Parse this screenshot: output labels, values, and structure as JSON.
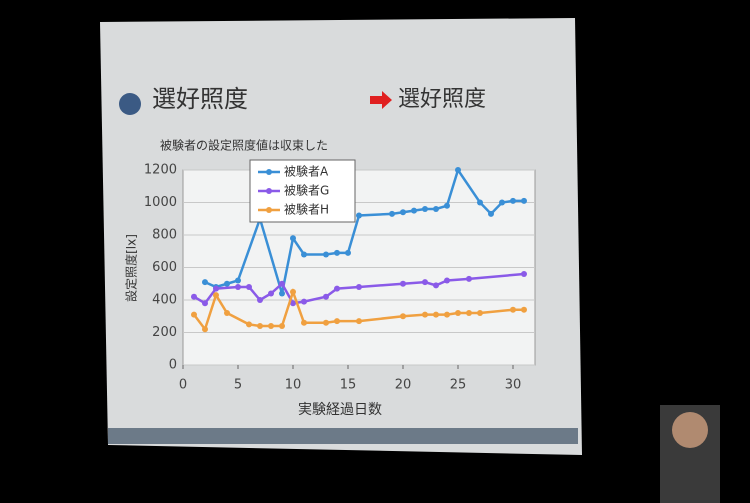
{
  "chart_data": {
    "type": "line",
    "title": "選好照度",
    "side_title": "選好照度",
    "subtitle": "被験者の設定照度値は収束した",
    "x_label": "実験経過日数",
    "y_label": "設定照度[lx]",
    "xlim": [
      0,
      32
    ],
    "xticks": [
      0,
      5,
      10,
      15,
      20,
      25,
      30
    ],
    "ylim": [
      0,
      1200
    ],
    "yticks": [
      0,
      200,
      400,
      600,
      800,
      1000,
      1200
    ],
    "grid": true,
    "series": [
      {
        "name": "被験者A",
        "color": "#3a8fd6",
        "x": [
          2,
          3,
          4,
          5,
          7,
          9,
          10,
          11,
          13,
          14,
          15,
          16,
          19,
          20,
          21,
          22,
          23,
          24,
          25,
          27,
          28,
          29,
          30,
          31
        ],
        "values": [
          510,
          480,
          500,
          520,
          900,
          440,
          780,
          680,
          680,
          690,
          690,
          920,
          930,
          940,
          950,
          960,
          960,
          980,
          1200,
          1000,
          930,
          1000,
          1010,
          1010
        ]
      },
      {
        "name": "被験者G",
        "color": "#8a5ae8",
        "x": [
          1,
          2,
          3,
          5,
          6,
          7,
          8,
          9,
          10,
          11,
          13,
          14,
          16,
          20,
          22,
          23,
          24,
          26,
          31
        ],
        "values": [
          420,
          380,
          470,
          480,
          480,
          400,
          440,
          500,
          380,
          390,
          420,
          470,
          480,
          500,
          510,
          490,
          520,
          530,
          560
        ]
      },
      {
        "name": "被験者H",
        "color": "#f0a040",
        "x": [
          1,
          2,
          3,
          4,
          6,
          7,
          8,
          9,
          10,
          11,
          13,
          14,
          16,
          20,
          22,
          23,
          24,
          25,
          26,
          27,
          30,
          31
        ],
        "values": [
          310,
          220,
          430,
          320,
          250,
          240,
          240,
          240,
          450,
          260,
          260,
          270,
          270,
          300,
          310,
          310,
          310,
          320,
          320,
          320,
          340,
          340
        ]
      }
    ]
  }
}
